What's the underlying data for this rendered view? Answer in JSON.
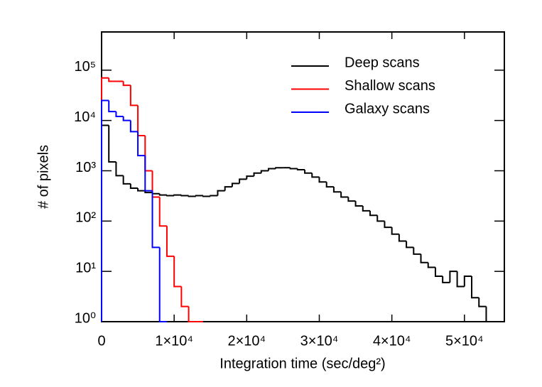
{
  "chart_data": {
    "type": "histogram",
    "xlabel": "Integration time (sec/deg²)",
    "ylabel": "# of pixels",
    "log_y": true,
    "legend": "upper right",
    "xlim": [
      0,
      55500
    ],
    "ylim": [
      1,
      575000
    ],
    "xticks": [
      0,
      {
        "value": 10000,
        "label": "1×10⁴"
      },
      {
        "value": 20000,
        "label": "2×10⁴"
      },
      {
        "value": 30000,
        "label": "3×10⁴"
      },
      {
        "value": 40000,
        "label": "4×10⁴"
      },
      {
        "value": 50000,
        "label": "5×10⁴"
      }
    ],
    "yticks": [
      {
        "value": 1,
        "label": "10⁰"
      },
      {
        "value": 10,
        "label": "10¹"
      },
      {
        "value": 100,
        "label": "10²"
      },
      {
        "value": 1000,
        "label": "10³"
      },
      {
        "value": 10000,
        "label": "10⁴"
      },
      {
        "value": 100000,
        "label": "10⁵"
      }
    ],
    "bins": [
      0,
      1000,
      2000,
      3000,
      4000,
      5000,
      6000,
      7000,
      8000,
      9000,
      10000,
      11000,
      12000,
      13000,
      14000,
      15000,
      16000,
      17000,
      18000,
      19000,
      20000,
      21000,
      22000,
      23000,
      24000,
      25000,
      26000,
      27000,
      28000,
      29000,
      30000,
      31000,
      32000,
      33000,
      34000,
      35000,
      36000,
      37000,
      38000,
      39000,
      40000,
      41000,
      42000,
      43000,
      44000,
      45000,
      46000,
      47000,
      48000,
      49000,
      50000,
      51000,
      52000,
      53000,
      54000
    ],
    "series": [
      {
        "name": "Deep scans",
        "color": "#000000",
        "values": [
          8000,
          1500,
          800,
          550,
          450,
          400,
          370,
          350,
          330,
          320,
          330,
          320,
          310,
          320,
          310,
          320,
          400,
          480,
          560,
          680,
          780,
          900,
          1000,
          1100,
          1150,
          1150,
          1100,
          1050,
          900,
          750,
          600,
          480,
          380,
          300,
          250,
          200,
          160,
          130,
          100,
          75,
          55,
          40,
          30,
          22,
          15,
          12,
          8,
          6,
          10,
          5,
          8,
          3,
          2,
          1
        ]
      },
      {
        "name": "Shallow scans",
        "color": "#ff0000",
        "values": [
          70000,
          60000,
          60000,
          50000,
          20000,
          5000,
          1000,
          300,
          80,
          20,
          5,
          2,
          1,
          1,
          null,
          null,
          null,
          null,
          null,
          null,
          null,
          null,
          null,
          null,
          null,
          null,
          null,
          null,
          null,
          null,
          null,
          null,
          null,
          null,
          null,
          null,
          null,
          null,
          null,
          null,
          null,
          null,
          null,
          null,
          null,
          null,
          null,
          null,
          null,
          null,
          null,
          null,
          null,
          null
        ]
      },
      {
        "name": "Galaxy scans",
        "color": "#0000ff",
        "values": [
          25000,
          15000,
          12000,
          10000,
          6000,
          2000,
          400,
          30,
          1,
          null,
          null,
          null,
          null,
          null,
          null,
          null,
          null,
          null,
          null,
          null,
          null,
          null,
          null,
          null,
          null,
          null,
          null,
          null,
          null,
          null,
          null,
          null,
          null,
          null,
          null,
          null,
          null,
          null,
          null,
          null,
          null,
          null,
          null,
          null,
          null,
          null,
          null,
          null,
          null,
          null,
          null,
          null,
          null,
          null
        ]
      }
    ]
  }
}
